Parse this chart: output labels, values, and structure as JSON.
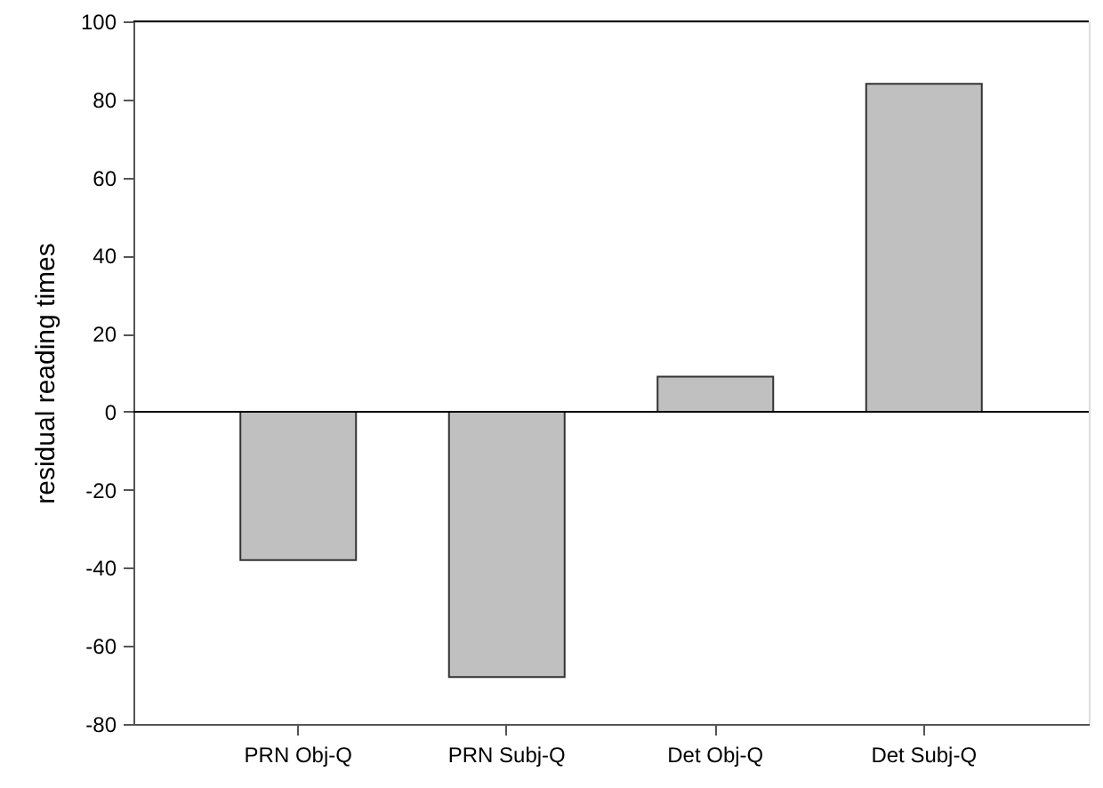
{
  "chart_data": {
    "type": "bar",
    "ylabel": "residual reading times",
    "categories": [
      "PRN Obj-Q",
      "PRN Subj-Q",
      "Det Obj-Q",
      "Det Subj-Q"
    ],
    "values": [
      -38,
      -68,
      9,
      84
    ],
    "color": "#c0c0c0",
    "ylim": [
      -80,
      100
    ],
    "yticks": [
      -80,
      -60,
      -40,
      -20,
      0,
      20,
      40,
      60,
      80,
      100
    ]
  }
}
